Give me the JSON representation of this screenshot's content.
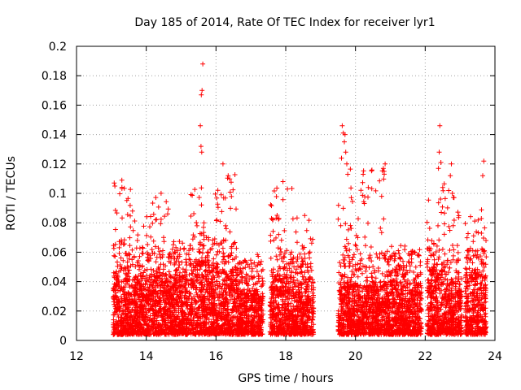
{
  "chart_data": {
    "type": "scatter",
    "title": "Day 185 of 2014, Rate Of TEC Index for receiver lyr1",
    "xlabel": "GPS time / hours",
    "ylabel": "ROTI / TECUs",
    "xlim": [
      12,
      24
    ],
    "ylim": [
      0,
      0.2
    ],
    "grid": true,
    "marker": "+",
    "color": "#ff0000",
    "x_ticks": [
      12,
      14,
      16,
      18,
      20,
      22,
      24
    ],
    "y_ticks": [
      0,
      0.02,
      0.04,
      0.06,
      0.08,
      0.1,
      0.12,
      0.14,
      0.16,
      0.18,
      0.2
    ],
    "x_tick_labels": [
      "12",
      "14",
      "16",
      "18",
      "20",
      "22",
      "24"
    ],
    "y_tick_labels": [
      "0",
      "0.02",
      "0.04",
      "0.06",
      "0.08",
      "0.1",
      "0.12",
      "0.14",
      "0.16",
      "0.18",
      "0.2"
    ],
    "clusters": [
      {
        "start": 13.05,
        "end": 13.55,
        "base_max": 0.05,
        "peak": 0.108
      },
      {
        "start": 13.55,
        "end": 14.05,
        "base_max": 0.045,
        "peak": 0.088
      },
      {
        "start": 14.05,
        "end": 14.75,
        "base_max": 0.045,
        "peak": 0.105
      },
      {
        "start": 14.75,
        "end": 15.25,
        "base_max": 0.045,
        "peak": 0.07
      },
      {
        "start": 15.25,
        "end": 15.85,
        "base_max": 0.055,
        "peak": 0.105
      },
      {
        "start": 15.85,
        "end": 16.6,
        "base_max": 0.05,
        "peak": 0.113
      },
      {
        "start": 16.6,
        "end": 17.35,
        "base_max": 0.035,
        "peak": 0.06
      },
      {
        "start": 17.55,
        "end": 18.2,
        "base_max": 0.045,
        "peak": 0.105
      },
      {
        "start": 18.2,
        "end": 18.8,
        "base_max": 0.04,
        "peak": 0.085
      },
      {
        "start": 19.5,
        "end": 19.85,
        "base_max": 0.04,
        "peak": 0.1
      },
      {
        "start": 19.85,
        "end": 20.9,
        "base_max": 0.04,
        "peak": 0.118
      },
      {
        "start": 20.9,
        "end": 21.9,
        "base_max": 0.04,
        "peak": 0.065
      },
      {
        "start": 22.05,
        "end": 22.6,
        "base_max": 0.05,
        "peak": 0.11
      },
      {
        "start": 22.6,
        "end": 23.05,
        "base_max": 0.04,
        "peak": 0.103
      },
      {
        "start": 23.15,
        "end": 23.75,
        "base_max": 0.045,
        "peak": 0.09
      }
    ],
    "outliers": [
      {
        "x": 13.08,
        "y": 0.107
      },
      {
        "x": 13.1,
        "y": 0.105
      },
      {
        "x": 13.3,
        "y": 0.109
      },
      {
        "x": 15.62,
        "y": 0.188
      },
      {
        "x": 15.6,
        "y": 0.17
      },
      {
        "x": 15.58,
        "y": 0.167
      },
      {
        "x": 15.55,
        "y": 0.146
      },
      {
        "x": 15.57,
        "y": 0.132
      },
      {
        "x": 15.59,
        "y": 0.128
      },
      {
        "x": 16.2,
        "y": 0.12
      },
      {
        "x": 16.35,
        "y": 0.112
      },
      {
        "x": 17.92,
        "y": 0.108
      },
      {
        "x": 18.05,
        "y": 0.103
      },
      {
        "x": 19.62,
        "y": 0.146
      },
      {
        "x": 19.65,
        "y": 0.141
      },
      {
        "x": 19.7,
        "y": 0.14
      },
      {
        "x": 19.68,
        "y": 0.135
      },
      {
        "x": 19.72,
        "y": 0.128
      },
      {
        "x": 19.6,
        "y": 0.124
      },
      {
        "x": 19.75,
        "y": 0.12
      },
      {
        "x": 19.78,
        "y": 0.113
      },
      {
        "x": 20.85,
        "y": 0.12
      },
      {
        "x": 20.8,
        "y": 0.117
      },
      {
        "x": 20.82,
        "y": 0.115
      },
      {
        "x": 20.22,
        "y": 0.113
      },
      {
        "x": 20.75,
        "y": 0.098
      },
      {
        "x": 22.42,
        "y": 0.146
      },
      {
        "x": 22.4,
        "y": 0.128
      },
      {
        "x": 22.45,
        "y": 0.121
      },
      {
        "x": 22.38,
        "y": 0.117
      },
      {
        "x": 22.5,
        "y": 0.104
      },
      {
        "x": 22.75,
        "y": 0.12
      },
      {
        "x": 22.72,
        "y": 0.112
      },
      {
        "x": 22.78,
        "y": 0.1
      },
      {
        "x": 23.68,
        "y": 0.122
      },
      {
        "x": 23.65,
        "y": 0.112
      }
    ]
  }
}
